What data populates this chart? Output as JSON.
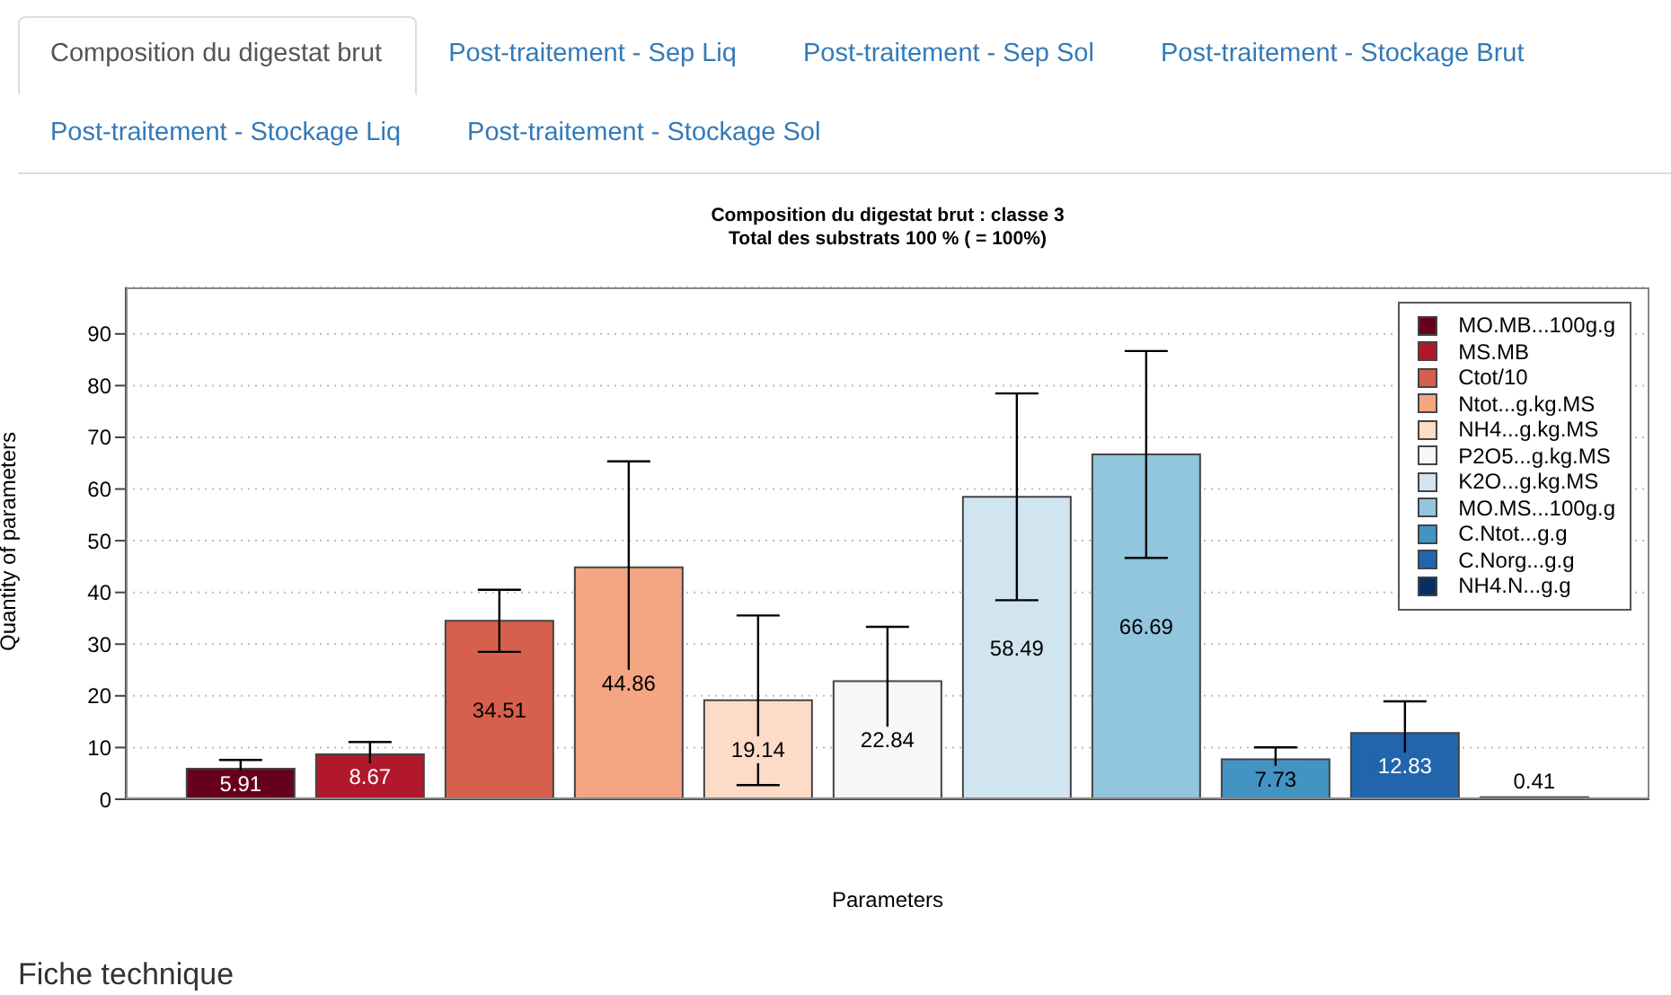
{
  "chart_data": {
    "type": "bar",
    "title": "Composition du digestat brut  : classe  3",
    "subtitle": "Total des substrats 100 % ( = 100%)",
    "xlabel": "Parameters",
    "ylabel": "Quantity of parameters",
    "categories": [
      null
    ],
    "series": [
      {
        "name": "MO.MB...100g.g",
        "color": "#67001f",
        "values": [
          5.91
        ],
        "errors": [
          1.7
        ]
      },
      {
        "name": "MS.MB",
        "color": "#b2182b",
        "values": [
          8.67
        ],
        "errors": [
          2.4
        ]
      },
      {
        "name": "Ctot/10",
        "color": "#d6604d",
        "values": [
          34.51
        ],
        "errors": [
          6
        ]
      },
      {
        "name": "Ntot...g.kg.MS",
        "color": "#f4a582",
        "values": [
          44.86
        ],
        "errors": [
          20.5
        ]
      },
      {
        "name": "NH4...g.kg.MS",
        "color": "#fddbc7",
        "values": [
          19.14
        ],
        "errors": [
          16.4
        ]
      },
      {
        "name": "P2O5...g.kg.MS",
        "color": "#f7f7f7",
        "values": [
          22.84
        ],
        "errors": [
          10.5
        ]
      },
      {
        "name": "K2O...g.kg.MS",
        "color": "#d1e5f0",
        "values": [
          58.49
        ],
        "errors": [
          20
        ]
      },
      {
        "name": "MO.MS...100g.g",
        "color": "#92c5de",
        "values": [
          66.69
        ],
        "errors": [
          20
        ]
      },
      {
        "name": "C.Ntot...g.g",
        "color": "#4393c3",
        "values": [
          7.73
        ],
        "errors": [
          2.3
        ]
      },
      {
        "name": "C.Norg...g.g",
        "color": "#2166ac",
        "values": [
          12.83
        ],
        "errors": [
          6.1
        ]
      },
      {
        "name": "NH4.N...g.g",
        "color": "#053061",
        "values": [
          0.41
        ],
        "errors": [
          null
        ]
      }
    ],
    "data_labels": true,
    "ylim": [
      0,
      99
    ],
    "yticks": [
      0,
      10,
      20,
      30,
      40,
      50,
      60,
      70,
      80,
      90
    ],
    "grid": "y",
    "legend": "top right",
    "tick_labels": "y",
    "annotations": [
      "Composition du digestat brut",
      "Post-traitement - Sep Liq",
      "Post-traitement - Sep Sol",
      "Post-traitement - Stockage Brut",
      "Post-traitement - Stockage Liq",
      "Post-traitement - Stockage Sol",
      "Fiche technique"
    ]
  }
}
